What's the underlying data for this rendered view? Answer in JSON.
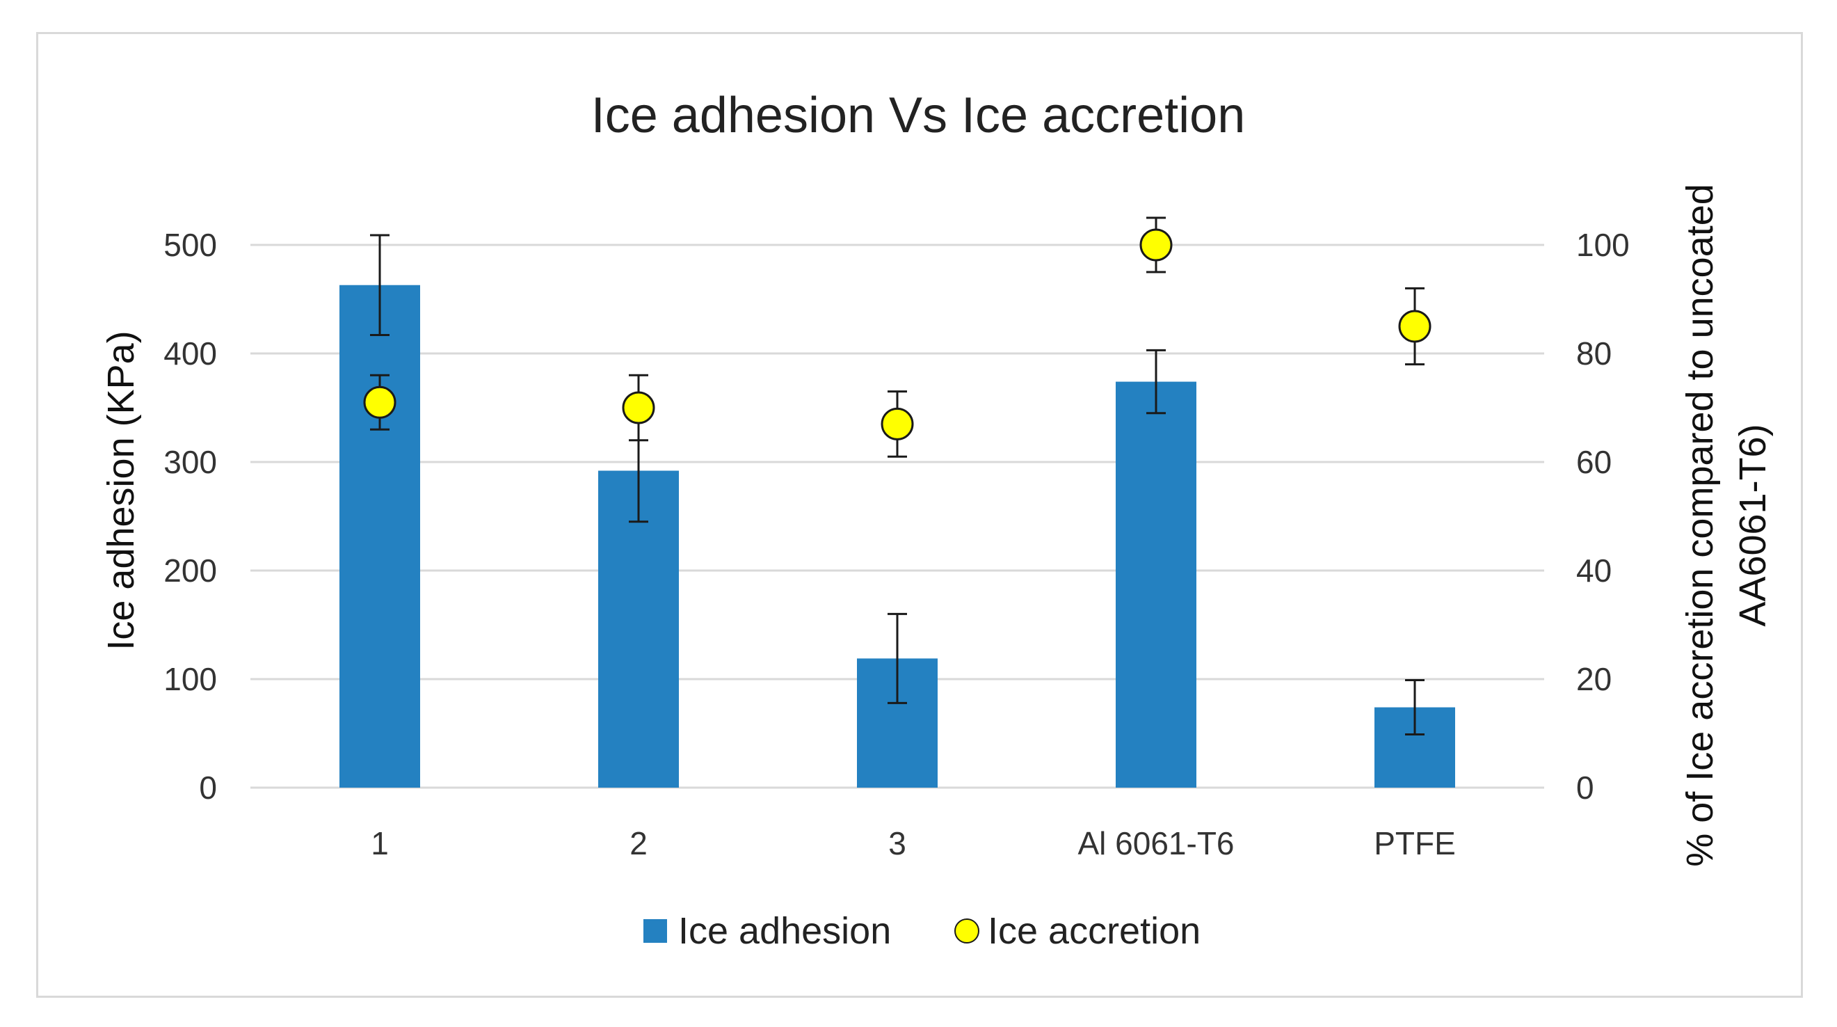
{
  "chart_data": {
    "type": "bar",
    "title": "Ice adhesion Vs Ice accretion",
    "categories": [
      "1",
      "2",
      "3",
      "Al 6061-T6",
      "PTFE"
    ],
    "y_left": {
      "label": "Ice adhesion (KPa)",
      "lim": [
        0,
        500
      ],
      "ticks": [
        "0",
        "100",
        "200",
        "300",
        "400",
        "500"
      ],
      "tick_values": [
        0,
        100,
        200,
        300,
        400,
        500
      ]
    },
    "y_right": {
      "label_line1": "% of Ice accretion compared to uncoated",
      "label_line2": "AA6061-T6)",
      "lim": [
        0,
        100
      ],
      "ticks": [
        "0",
        "20",
        "40",
        "60",
        "80",
        "100"
      ],
      "tick_values": [
        0,
        20,
        40,
        60,
        80,
        100
      ]
    },
    "grid": true,
    "legend_position": "bottom",
    "series": [
      {
        "name": "Ice adhesion",
        "kind": "bar",
        "axis": "left",
        "color": "#2481c1",
        "values": [
          463,
          292,
          119,
          374,
          74
        ],
        "errors": [
          46,
          47,
          41,
          29,
          25
        ]
      },
      {
        "name": "Ice accretion",
        "kind": "scatter",
        "axis": "right",
        "color": "#ffff00",
        "edge_color": "#1a1a1a",
        "values": [
          71,
          70,
          67,
          100,
          85
        ],
        "errors": [
          5,
          6,
          6,
          5,
          7
        ]
      }
    ]
  }
}
